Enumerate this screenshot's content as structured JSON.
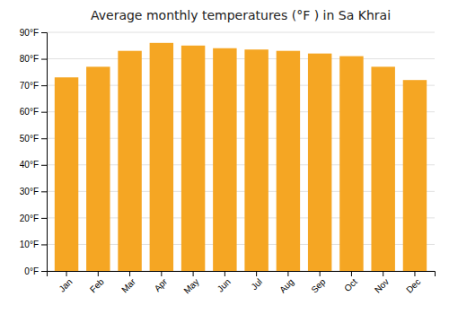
{
  "chart_data": {
    "type": "bar",
    "title": "Average monthly temperatures (°F ) in Sa Khrai",
    "categories": [
      "Jan",
      "Feb",
      "Mar",
      "Apr",
      "May",
      "Jun",
      "Jul",
      "Aug",
      "Sep",
      "Oct",
      "Nov",
      "Dec"
    ],
    "values": [
      73,
      77,
      83,
      86,
      85,
      84,
      83.5,
      83,
      82,
      81,
      77,
      72
    ],
    "color": "#F5A623",
    "ylim": [
      0,
      90
    ],
    "yticks": [
      {
        "value": 0,
        "label": "0°F"
      },
      {
        "value": 10,
        "label": "10°F"
      },
      {
        "value": 20,
        "label": "20°F"
      },
      {
        "value": 30,
        "label": "30°F"
      },
      {
        "value": 40,
        "label": "40°F"
      },
      {
        "value": 50,
        "label": "50°F"
      },
      {
        "value": 60,
        "label": "60°F"
      },
      {
        "value": 70,
        "label": "70°F"
      },
      {
        "value": 80,
        "label": "80°F"
      },
      {
        "value": 90,
        "label": "90°F"
      }
    ],
    "grid": true
  }
}
